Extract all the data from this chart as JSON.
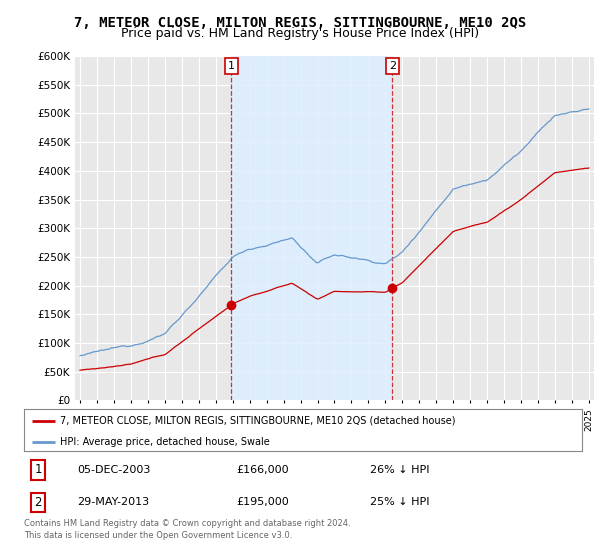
{
  "title": "7, METEOR CLOSE, MILTON REGIS, SITTINGBOURNE, ME10 2QS",
  "subtitle": "Price paid vs. HM Land Registry's House Price Index (HPI)",
  "title_fontsize": 10,
  "subtitle_fontsize": 9,
  "ylim": [
    0,
    600000
  ],
  "yticks": [
    0,
    50000,
    100000,
    150000,
    200000,
    250000,
    300000,
    350000,
    400000,
    450000,
    500000,
    550000,
    600000
  ],
  "bg_color": "#ffffff",
  "plot_bg_color": "#e8e8e8",
  "grid_color": "#ffffff",
  "red_color": "#cc0000",
  "blue_color": "#6699cc",
  "shade_color": "#ddeeff",
  "purchase1_year": 2003.92,
  "purchase1_price": 166000,
  "purchase1_label": "1",
  "purchase2_year": 2013.41,
  "purchase2_price": 195000,
  "purchase2_label": "2",
  "legend_line1": "7, METEOR CLOSE, MILTON REGIS, SITTINGBOURNE, ME10 2QS (detached house)",
  "legend_line2": "HPI: Average price, detached house, Swale",
  "footer1": "Contains HM Land Registry data © Crown copyright and database right 2024.",
  "footer2": "This data is licensed under the Open Government Licence v3.0.",
  "table_row1": [
    "1",
    "05-DEC-2003",
    "£166,000",
    "26% ↓ HPI"
  ],
  "table_row2": [
    "2",
    "29-MAY-2013",
    "£195,000",
    "25% ↓ HPI"
  ],
  "xstart": 1995,
  "xend": 2025
}
